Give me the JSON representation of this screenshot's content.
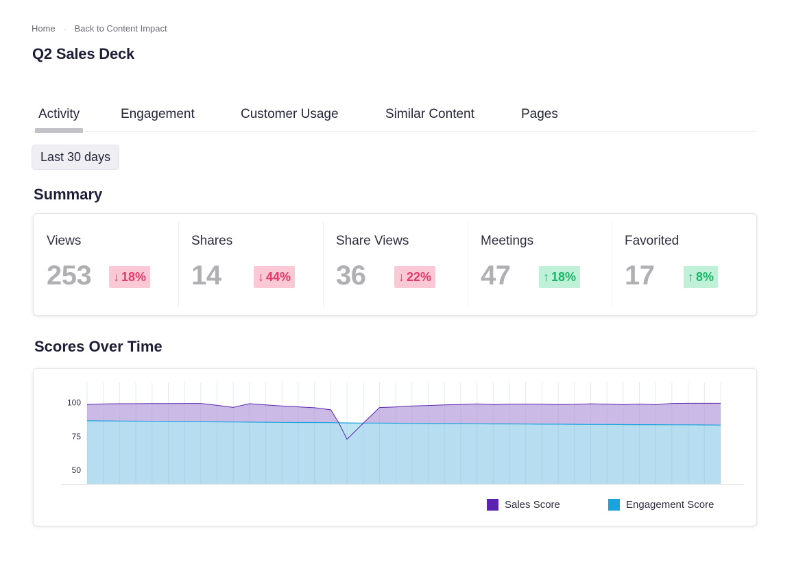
{
  "breadcrumb": {
    "home": "Home",
    "separator": ".",
    "back": "Back to Content Impact"
  },
  "page": {
    "title": "Q2 Sales Deck"
  },
  "tabs": [
    {
      "label": "Activity",
      "active": true
    },
    {
      "label": "Engagement",
      "active": false
    },
    {
      "label": "Customer Usage",
      "active": false
    },
    {
      "label": "Similar Content",
      "active": false
    },
    {
      "label": "Pages",
      "active": false
    }
  ],
  "filter": {
    "range_label": "Last 30 days"
  },
  "summary": {
    "title": "Summary",
    "metrics": [
      {
        "label": "Views",
        "value": "253",
        "change": "18%",
        "direction": "down"
      },
      {
        "label": "Shares",
        "value": "14",
        "change": "44%",
        "direction": "down"
      },
      {
        "label": "Share Views",
        "value": "36",
        "change": "22%",
        "direction": "down"
      },
      {
        "label": "Meetings",
        "value": "47",
        "change": "18%",
        "direction": "up"
      },
      {
        "label": "Favorited",
        "value": "17",
        "change": "8%",
        "direction": "up"
      }
    ],
    "arrows": {
      "down": "↓",
      "up": "↑"
    },
    "colors": {
      "down_bg": "#fbc9d6",
      "down_text": "#e23b69",
      "up_bg": "#c0f0d7",
      "up_text": "#1ab567"
    }
  },
  "scores": {
    "title": "Scores Over Time"
  },
  "chart_data": {
    "type": "area",
    "title": "",
    "xlabel": "",
    "ylabel": "",
    "ylim": [
      40,
      105
    ],
    "yticks": [
      100,
      75,
      50
    ],
    "grid": {
      "vertical": true,
      "horizontal": false
    },
    "legend_position": "bottom-right",
    "x": [
      1,
      2,
      3,
      4,
      5,
      6,
      7,
      8,
      9,
      10,
      11,
      12,
      13,
      14,
      15,
      16,
      16.5,
      17,
      18,
      19,
      20,
      21,
      22,
      23,
      24,
      25,
      26,
      27,
      28,
      29,
      30,
      31,
      32,
      33,
      34,
      35,
      36,
      37,
      38,
      39,
      40
    ],
    "series": [
      {
        "name": "Sales Score",
        "color": "#5b24b0",
        "fill": "#cbb9e6",
        "values": [
          98.6,
          99.0,
          99.2,
          99.2,
          99.3,
          99.3,
          99.4,
          99.4,
          98.0,
          96.5,
          99.2,
          98.3,
          97.5,
          96.9,
          96.2,
          94.7,
          85.0,
          72.9,
          84.8,
          96.4,
          96.8,
          97.5,
          97.9,
          98.3,
          98.6,
          99.0,
          98.6,
          98.8,
          98.9,
          98.8,
          98.6,
          98.7,
          99.1,
          98.9,
          98.5,
          98.9,
          98.5,
          99.4,
          99.5,
          99.5,
          99.5
        ]
      },
      {
        "name": "Engagement Score",
        "color": "#1aa3dc",
        "fill": "#b5e1f2",
        "values": [
          86.6,
          86.5,
          86.4,
          86.3,
          86.2,
          86.1,
          86.0,
          85.9,
          85.8,
          85.7,
          85.6,
          85.5,
          85.4,
          85.3,
          85.3,
          85.2,
          85.1,
          85.0,
          84.9,
          84.9,
          84.8,
          84.7,
          84.6,
          84.6,
          84.5,
          84.4,
          84.3,
          84.3,
          84.2,
          84.1,
          84.1,
          84.0,
          83.9,
          83.9,
          83.8,
          83.7,
          83.7,
          83.6,
          83.6,
          83.5,
          83.4
        ]
      }
    ]
  }
}
